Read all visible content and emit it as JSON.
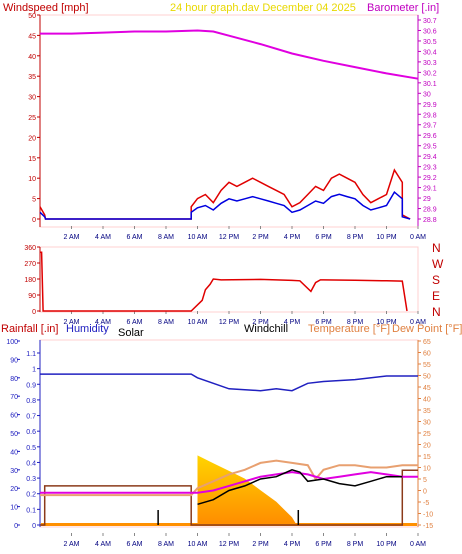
{
  "top_panel": {
    "title": "24 hour graph.dav   December 04 2025",
    "left_label": "Windspeed [mph]",
    "right_label": "Barometer [.in]",
    "left_ticks": [
      "50",
      "45",
      "40",
      "35",
      "30",
      "25",
      "20",
      "15",
      "10",
      "5",
      "0"
    ],
    "right_ticks": [
      "30.7",
      "30.6",
      "30.5",
      "30.4",
      "30.3",
      "30.2",
      "30.1",
      "30",
      "29.9",
      "29.8",
      "29.7",
      "29.6",
      "29.5",
      "29.4",
      "29.3",
      "29.2",
      "29.1",
      "29",
      "28.9",
      "28.8"
    ],
    "x_ticks": [
      "2 AM",
      "4 AM",
      "6 AM",
      "8 AM",
      "10 AM",
      "12 PM",
      "2 PM",
      "4 PM",
      "6 PM",
      "8 PM",
      "10 PM",
      "0 AM"
    ]
  },
  "dir_panel": {
    "left_ticks": [
      "360",
      "270",
      "180",
      "90",
      "0"
    ],
    "right_labels": [
      "N",
      "W",
      "S",
      "E",
      "N"
    ],
    "x_ticks": [
      "2 AM",
      "4 AM",
      "6 AM",
      "8 AM",
      "10 AM",
      "12 PM",
      "2 PM",
      "4 PM",
      "6 PM",
      "8 PM",
      "10 PM",
      "0 AM"
    ]
  },
  "bottom_panel": {
    "rain_label": "Rainfall [.in]",
    "humidity_label": "Humidity",
    "solar_label": "Solar",
    "windchill_label": "Windchill",
    "temp_label": "Temperature [°F]",
    "dew_label": "Dew Point [°F]",
    "humidity_ticks": [
      "100",
      "90",
      "80",
      "70",
      "60",
      "50",
      "40",
      "30",
      "20",
      "10",
      "0"
    ],
    "rain_ticks": [
      "1.1",
      "1",
      "0.9",
      "0.8",
      "0.7",
      "0.6",
      "0.5",
      "0.4",
      "0.3",
      "0.2",
      "0.1",
      "0"
    ],
    "temp_ticks": [
      "65",
      "60",
      "55",
      "50",
      "45",
      "40",
      "35",
      "30",
      "25",
      "20",
      "15",
      "10",
      "5",
      "0",
      "-5",
      "-10",
      "-15"
    ],
    "x_ticks": [
      "2 AM",
      "4 AM",
      "6 AM",
      "8 AM",
      "10 AM",
      "12 PM",
      "2 PM",
      "4 PM",
      "6 PM",
      "8 PM",
      "10 PM",
      "0 AM"
    ]
  },
  "colors": {
    "wind": "#e00000",
    "gust_avg": "#0000e0",
    "baro": "#e000e0",
    "dir": "#e00000",
    "humidity": "#2020c0",
    "temp": "#e8a070",
    "dew": "#e000e0",
    "windchill": "#000000",
    "rain": "#8b3a1a",
    "solar_top": "#ffd000",
    "solar_bottom": "#ff9000",
    "axis_left": "#c00000",
    "axis_right_baro": "#c000c0",
    "axis_right_temp": "#e08040",
    "title": "#e8d800"
  },
  "chart_data": [
    {
      "type": "line",
      "title": "24 hour graph.dav   December 04 2025",
      "x_unit": "hour of day",
      "xlim": [
        0,
        24
      ],
      "ylim_left": [
        0,
        50
      ],
      "ylim_right": [
        28.8,
        30.7
      ],
      "series": [
        {
          "name": "Windspeed [mph]",
          "axis": "left",
          "x": [
            0,
            0.3,
            0.35,
            9.6,
            9.6,
            10,
            10.5,
            11,
            11.5,
            12,
            12.5,
            13,
            13.5,
            14,
            14.5,
            15,
            15.5,
            16,
            16.5,
            17,
            17.5,
            18,
            18.5,
            19,
            19.5,
            20,
            20.5,
            21,
            21.5,
            22,
            22.5,
            23,
            23,
            23.5
          ],
          "y": [
            3,
            1,
            0,
            0,
            3,
            5,
            6,
            4,
            7,
            9,
            8,
            9,
            10,
            9,
            8,
            7,
            6,
            3,
            4,
            6,
            8,
            7,
            10,
            11,
            10,
            9,
            6,
            4,
            5,
            6,
            12,
            9,
            1,
            0
          ]
        },
        {
          "name": "Barometer [.in]",
          "axis": "right",
          "x": [
            0,
            2,
            4,
            6,
            8,
            10,
            11,
            12,
            14,
            16,
            18,
            20,
            22,
            24
          ],
          "y": [
            30.57,
            30.57,
            30.58,
            30.59,
            30.59,
            30.6,
            30.59,
            30.55,
            30.47,
            30.38,
            30.31,
            30.25,
            30.19,
            30.14
          ]
        }
      ]
    },
    {
      "type": "line",
      "x_unit": "hour of day",
      "xlim": [
        0,
        24
      ],
      "ylim": [
        0,
        360
      ],
      "series": [
        {
          "name": "Wind direction",
          "x": [
            0,
            0.1,
            0.2,
            9,
            9.6,
            10.3,
            10.5,
            10.8,
            11,
            11.5,
            14,
            16,
            16.5,
            17.2,
            17.5,
            17.8,
            18,
            20,
            22,
            23,
            23.3
          ],
          "y": [
            330,
            330,
            0,
            0,
            0,
            60,
            120,
            150,
            180,
            175,
            178,
            172,
            170,
            110,
            160,
            175,
            175,
            173,
            170,
            168,
            0
          ]
        }
      ]
    },
    {
      "type": "line",
      "x_unit": "hour of day",
      "xlim": [
        0,
        24
      ],
      "ylim_humidity": [
        0,
        100
      ],
      "ylim_rain": [
        0,
        1.1
      ],
      "ylim_temp": [
        -15,
        65
      ],
      "series": [
        {
          "name": "Humidity",
          "x": [
            0,
            9.6,
            10,
            12,
            14,
            15,
            16,
            17,
            18,
            20,
            22,
            24
          ],
          "y": [
            82,
            82,
            80,
            74,
            73,
            74,
            73,
            77,
            78,
            79,
            81,
            81
          ]
        },
        {
          "name": "Temperature [°F]",
          "x": [
            0,
            9.6,
            10,
            11,
            12,
            13,
            14,
            15,
            16,
            17,
            17.5,
            18,
            19,
            20,
            21,
            22,
            23,
            24
          ],
          "y": [
            -2,
            -2,
            1,
            4,
            7,
            9,
            12,
            13,
            12,
            11,
            5,
            9,
            11,
            11,
            10,
            10,
            11,
            11
          ]
        },
        {
          "name": "Dew Point [°F]",
          "x": [
            0,
            9.6,
            10,
            11,
            12,
            13,
            14,
            15,
            16,
            17,
            18,
            19,
            20,
            21,
            22,
            23,
            24
          ],
          "y": [
            -1,
            -1,
            -1,
            0,
            2,
            4,
            6,
            7,
            8,
            7,
            5,
            6,
            7,
            8,
            7,
            6,
            6
          ]
        },
        {
          "name": "Windchill",
          "x": [
            10,
            11,
            12,
            13,
            14,
            15,
            16,
            16.5,
            17,
            18,
            19,
            20,
            21,
            22,
            23
          ],
          "y": [
            -6,
            -4,
            0,
            2,
            5,
            6,
            9,
            8,
            4,
            5,
            3,
            2,
            4,
            6,
            6
          ]
        },
        {
          "name": "Rainfall [.in]",
          "x": [
            0,
            0.3,
            0.3,
            9.6,
            9.6,
            23,
            23,
            24
          ],
          "y": [
            0,
            0,
            0.25,
            0.25,
            0,
            0,
            0.35,
            0.35
          ]
        },
        {
          "name": "Solar",
          "x": [
            10,
            11,
            12,
            13,
            14,
            15,
            16,
            16.3
          ],
          "y": [
            18,
            16,
            14,
            12,
            9,
            6,
            2,
            0
          ]
        }
      ]
    }
  ]
}
